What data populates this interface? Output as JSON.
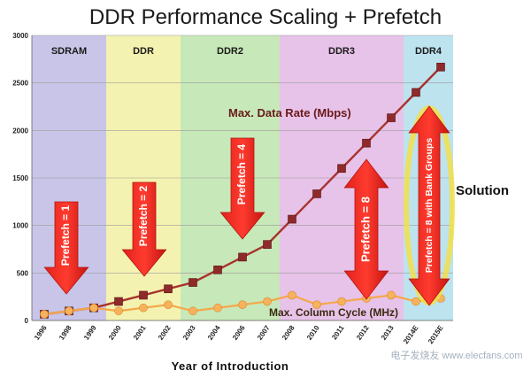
{
  "chart_data": {
    "type": "line",
    "title": "DDR Performance Scaling + Prefetch",
    "xlabel": "Year of Introduction",
    "ylabel": "",
    "ylim": [
      0,
      3000
    ],
    "yticks": [
      0,
      500,
      1000,
      1500,
      2000,
      2500,
      3000
    ],
    "grid": true,
    "x": [
      "1996",
      "1998",
      "1999",
      "2000",
      "2001",
      "2002",
      "2003",
      "2004",
      "2006",
      "2007",
      "2008",
      "2010",
      "2011",
      "2012",
      "2013",
      "2014E",
      "2015E"
    ],
    "series": [
      {
        "name": "Max. Data Rate (Mbps)",
        "color": "#a8332e",
        "marker": "square",
        "values": [
          66,
          100,
          133,
          200,
          266,
          333,
          400,
          533,
          667,
          800,
          1066,
          1333,
          1600,
          1866,
          2133,
          2400,
          2667
        ]
      },
      {
        "name": "Max. Column Cycle (MHz)",
        "color": "#f5a74a",
        "marker": "circle",
        "values": [
          66,
          100,
          133,
          100,
          133,
          166,
          100,
          133,
          166,
          200,
          266,
          166,
          200,
          233,
          266,
          200,
          233
        ]
      }
    ],
    "bands": [
      {
        "label": "SDRAM",
        "from": "1996",
        "to": "1999",
        "color": "#c8c5e8"
      },
      {
        "label": "DDR",
        "from": "2000",
        "to": "2002",
        "color": "#f4f2b0"
      },
      {
        "label": "DDR2",
        "from": "2003",
        "to": "2007",
        "color": "#c7e8b8"
      },
      {
        "label": "DDR3",
        "from": "2008",
        "to": "2013",
        "color": "#e7c2e9"
      },
      {
        "label": "DDR4",
        "from": "2014E",
        "to": "2015E",
        "color": "#bde3ef"
      }
    ],
    "annotations": [
      {
        "text": "Prefetch = 1",
        "band": "SDRAM"
      },
      {
        "text": "Prefetch = 2",
        "band": "DDR"
      },
      {
        "text": "Prefetch = 4",
        "band": "DDR2"
      },
      {
        "text": "Prefetch = 8",
        "band": "DDR3"
      },
      {
        "text": "Prefetch = 8 with Bank Groups",
        "band": "DDR4"
      }
    ],
    "side_label": "Solution",
    "watermark": "电子发烧友 www.elecfans.com"
  }
}
